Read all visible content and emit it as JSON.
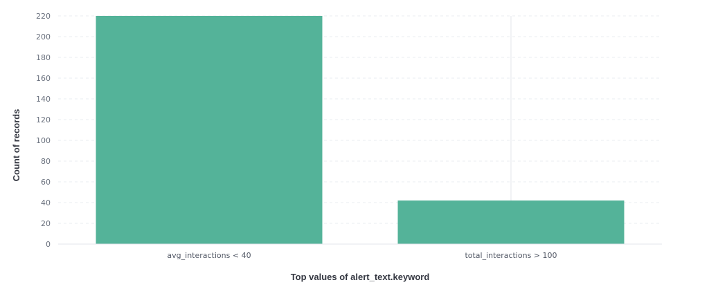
{
  "chart_data": {
    "type": "bar",
    "categories": [
      "avg_interactions < 40",
      "total_interactions > 100"
    ],
    "values": [
      220,
      42
    ],
    "xlabel": "Top values of alert_text.keyword",
    "ylabel": "Count of records",
    "ylim": [
      0,
      220
    ],
    "yticks": [
      0,
      20,
      40,
      60,
      80,
      100,
      120,
      140,
      160,
      180,
      200,
      220
    ],
    "grid": true,
    "bar_color": "#54b399"
  }
}
